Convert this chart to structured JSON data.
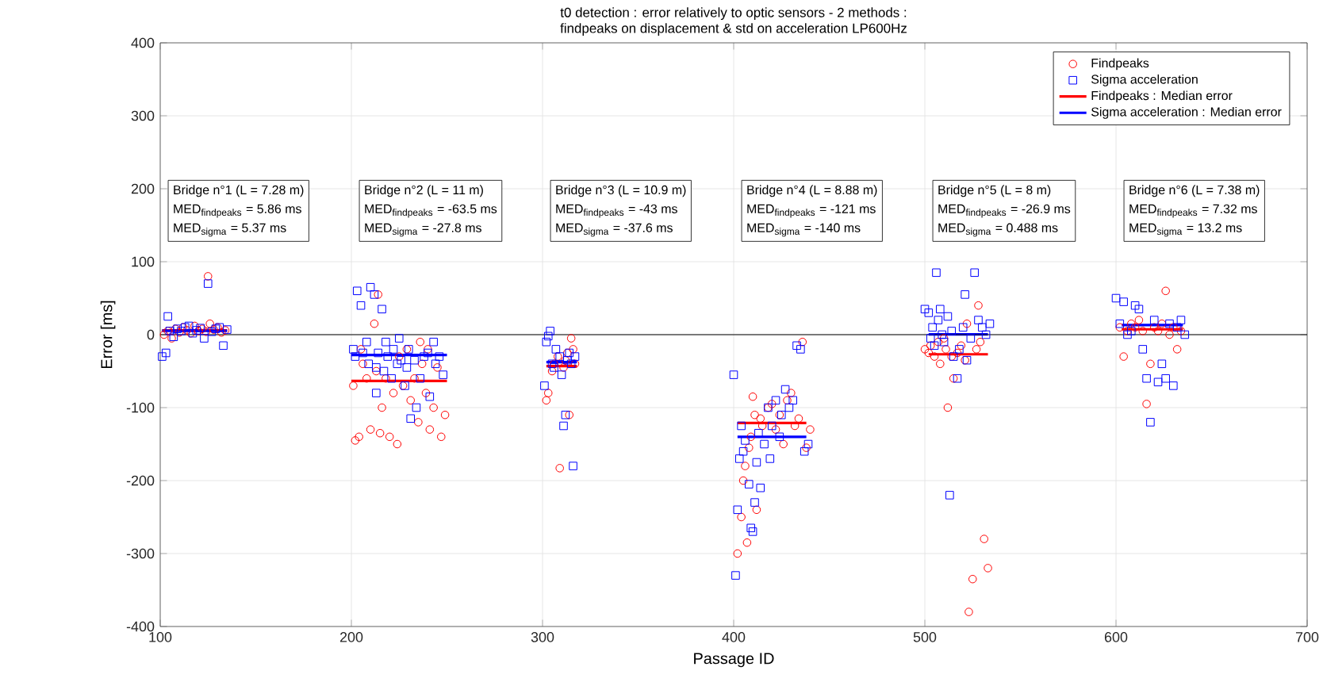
{
  "chart_data": {
    "type": "scatter",
    "title": "t0 detection : error relatively to optic sensors - 2 methods :",
    "subtitle": "findpeaks on displacement & std on acceleration LP600Hz",
    "xlabel": "Passage ID",
    "ylabel": "Error [ms]",
    "xlim": [
      100,
      700
    ],
    "xticks": [
      100,
      200,
      300,
      400,
      500,
      600,
      700
    ],
    "ylim": [
      -400,
      400
    ],
    "yticks": [
      -400,
      -300,
      -200,
      -100,
      0,
      100,
      200,
      300,
      400
    ],
    "grid": true,
    "legend": "top right",
    "ref_lines": [
      {
        "axis": "y",
        "value": 0,
        "color": "#000000"
      }
    ],
    "series": [
      {
        "name": "Findpeaks",
        "marker": "circle",
        "color": "#ff0000",
        "x": [
          102,
          104,
          106,
          108,
          110,
          112,
          114,
          116,
          118,
          120,
          122,
          124,
          125,
          126,
          128,
          130,
          132,
          134,
          201,
          202,
          204,
          205,
          206,
          208,
          210,
          212,
          213,
          214,
          215,
          216,
          218,
          220,
          222,
          224,
          225,
          227,
          229,
          231,
          233,
          235,
          236,
          237,
          239,
          240,
          241,
          243,
          245,
          247,
          249,
          302,
          303,
          305,
          306,
          308,
          309,
          311,
          312,
          313,
          314,
          315,
          316,
          317,
          402,
          404,
          405,
          406,
          407,
          408,
          409,
          410,
          411,
          412,
          414,
          415,
          418,
          420,
          422,
          424,
          426,
          428,
          430,
          432,
          434,
          436,
          438,
          440,
          500,
          502,
          503,
          505,
          507,
          508,
          510,
          511,
          512,
          514,
          515,
          517,
          519,
          521,
          522,
          523,
          525,
          527,
          528,
          529,
          531,
          533,
          602,
          604,
          606,
          608,
          610,
          612,
          614,
          616,
          618,
          620,
          622,
          624,
          626,
          628,
          630,
          632,
          634
        ],
        "values": [
          0,
          5,
          -5,
          8,
          3,
          10,
          6,
          2,
          12,
          5,
          8,
          4,
          80,
          15,
          7,
          10,
          3,
          6,
          -70,
          -145,
          -140,
          -20,
          -40,
          -60,
          -130,
          15,
          -50,
          55,
          -135,
          -100,
          -60,
          -140,
          -80,
          -150,
          -30,
          -70,
          -20,
          -90,
          -60,
          -120,
          -10,
          -40,
          -80,
          -20,
          -130,
          -100,
          -45,
          -140,
          -110,
          -90,
          -80,
          -50,
          -40,
          -30,
          -183,
          -45,
          -35,
          -25,
          -110,
          -5,
          -20,
          -40,
          -300,
          -250,
          -200,
          -180,
          -285,
          -155,
          -140,
          -85,
          -110,
          -240,
          -115,
          -125,
          -100,
          -95,
          -130,
          -110,
          -150,
          -90,
          -80,
          -125,
          -115,
          -10,
          -155,
          -130,
          -20,
          -25,
          -15,
          -30,
          -10,
          -40,
          -5,
          -20,
          -100,
          -30,
          -60,
          -25,
          -15,
          -35,
          15,
          -380,
          -335,
          -20,
          40,
          -10,
          -280,
          -320,
          10,
          -30,
          5,
          15,
          10,
          20,
          5,
          -95,
          -40,
          10,
          5,
          15,
          60,
          0,
          10,
          -20,
          5
        ]
      },
      {
        "name": "Sigma acceleration",
        "marker": "square",
        "color": "#0000ff",
        "x": [
          101,
          103,
          104,
          105,
          107,
          109,
          111,
          113,
          115,
          117,
          119,
          121,
          123,
          125,
          127,
          129,
          131,
          133,
          135,
          201,
          202,
          203,
          205,
          206,
          208,
          209,
          210,
          212,
          213,
          213,
          214,
          216,
          217,
          218,
          219,
          221,
          222,
          224,
          225,
          226,
          228,
          229,
          230,
          231,
          233,
          234,
          236,
          238,
          240,
          241,
          243,
          244,
          246,
          248,
          301,
          302,
          303,
          304,
          305,
          306,
          307,
          309,
          310,
          311,
          312,
          313,
          314,
          315,
          316,
          317,
          400,
          401,
          402,
          403,
          404,
          405,
          406,
          408,
          409,
          410,
          411,
          412,
          413,
          414,
          416,
          418,
          419,
          420,
          422,
          424,
          425,
          427,
          429,
          431,
          433,
          435,
          437,
          439,
          500,
          502,
          503,
          504,
          505,
          506,
          507,
          508,
          509,
          510,
          512,
          513,
          514,
          515,
          517,
          518,
          520,
          521,
          522,
          524,
          526,
          528,
          530,
          532,
          534,
          600,
          602,
          604,
          606,
          608,
          610,
          612,
          614,
          616,
          618,
          620,
          622,
          624,
          626,
          628,
          630,
          632,
          634,
          636
        ],
        "values": [
          -30,
          -25,
          25,
          5,
          -3,
          8,
          5,
          10,
          12,
          2,
          6,
          9,
          -5,
          70,
          4,
          8,
          10,
          -15,
          7,
          -20,
          -30,
          60,
          40,
          -25,
          -10,
          -40,
          65,
          55,
          -45,
          -80,
          -25,
          35,
          -50,
          -10,
          -30,
          -60,
          -20,
          -40,
          -5,
          -35,
          -70,
          -45,
          -20,
          -115,
          -35,
          -100,
          -60,
          -30,
          -25,
          -85,
          -10,
          -40,
          -30,
          -55,
          -70,
          -10,
          -2,
          5,
          -40,
          -45,
          -20,
          -30,
          -55,
          -125,
          -110,
          -35,
          -25,
          -40,
          -180,
          -30,
          -55,
          -330,
          -240,
          -170,
          -125,
          -160,
          -145,
          -205,
          -265,
          -270,
          -230,
          -175,
          -135,
          -210,
          -150,
          -100,
          -170,
          -125,
          -90,
          -140,
          -110,
          -75,
          -100,
          -90,
          -15,
          -20,
          -160,
          -150,
          35,
          30,
          -5,
          10,
          -15,
          85,
          20,
          35,
          0,
          -10,
          25,
          -220,
          5,
          -30,
          -60,
          -20,
          10,
          55,
          -35,
          -5,
          85,
          20,
          10,
          0,
          15,
          50,
          15,
          45,
          0,
          5,
          40,
          35,
          -20,
          -60,
          -120,
          20,
          -65,
          -40,
          -60,
          15,
          -70,
          10,
          20,
          0
        ]
      },
      {
        "name": "Findpeaks : Median error",
        "type": "line",
        "marker": "none",
        "line_style": "solid",
        "color": "#ff0000",
        "x": [
          101,
          135,
          null,
          200,
          250,
          null,
          302,
          318,
          null,
          402,
          438,
          null,
          502,
          533,
          null,
          603,
          635
        ],
        "values": [
          5.86,
          5.86,
          null,
          -63.5,
          -63.5,
          null,
          -43,
          -43,
          null,
          -121,
          -121,
          null,
          -26.9,
          -26.9,
          null,
          7.32,
          7.32
        ]
      },
      {
        "name": "Sigma acceleration : Median error",
        "type": "line",
        "marker": "none",
        "line_style": "solid",
        "color": "#0000ff",
        "x": [
          101,
          135,
          null,
          200,
          250,
          null,
          302,
          318,
          null,
          402,
          438,
          null,
          502,
          533,
          null,
          603,
          635
        ],
        "values": [
          5.37,
          5.37,
          null,
          -27.8,
          -27.8,
          null,
          -37.6,
          -37.6,
          null,
          -140,
          -140,
          null,
          0.488,
          0.488,
          null,
          13.2,
          13.2
        ]
      }
    ],
    "annotations": [
      "Bridge n°1 (L = 7.28 m)",
      "\\text{MED}_{\\text{findpeaks}}\\text{ = 5.86 ms}",
      "\\text{MED}_{\\text{sigma}}\\text{ = 5.37 ms}",
      "Bridge n°2 (L = 11 m)",
      "\\text{MED}_{\\text{findpeaks}}\\text{ = -63.5 ms}",
      "\\text{MED}_{\\text{sigma}}\\text{ = -27.8 ms}",
      "Bridge n°3 (L = 10.9 m)",
      "\\text{MED}_{\\text{findpeaks}}\\text{ = -43 ms}",
      "\\text{MED}_{\\text{sigma}}\\text{ = -37.6 ms}",
      "Bridge n°4 (L = 8.88 m)",
      "\\text{MED}_{\\text{findpeaks}}\\text{ = -121 ms}",
      "\\text{MED}_{\\text{sigma}}\\text{ = -140 ms}",
      "Bridge n°5 (L =  8 m)",
      "\\text{MED}_{\\text{findpeaks}}\\text{ = -26.9 ms}",
      "\\text{MED}_{\\text{sigma}}\\text{ = 0.488 ms}",
      "Bridge n°6 (L = 7.38 m)",
      "\\text{MED}_{\\text{findpeaks}}\\text{ = 7.32 ms}",
      "\\text{MED}_{\\text{sigma}}\\text{ = 13.2 ms}"
    ]
  }
}
